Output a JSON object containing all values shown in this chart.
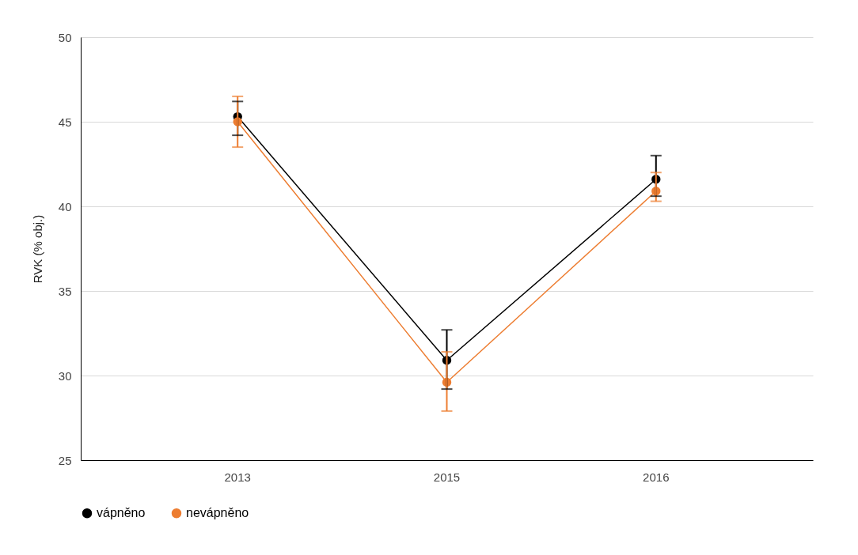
{
  "chart_data": {
    "type": "line",
    "ylabel": "RVK (% obj.)",
    "categories": [
      "2013",
      "2015",
      "2016"
    ],
    "series": [
      {
        "name": "vápněno",
        "color": "#000000",
        "values": [
          45.3,
          30.9,
          41.6
        ],
        "errors": [
          [
            44.2,
            46.2
          ],
          [
            29.2,
            32.7
          ],
          [
            40.6,
            43.0
          ]
        ]
      },
      {
        "name": "nevápněno",
        "color": "#ed7d31",
        "values": [
          45.0,
          29.6,
          40.9
        ],
        "errors": [
          [
            43.5,
            46.5
          ],
          [
            27.9,
            31.4
          ],
          [
            40.3,
            42.0
          ]
        ]
      }
    ],
    "ylim": [
      25,
      50
    ],
    "yticks": [
      25,
      30,
      35,
      40,
      45,
      50
    ],
    "grid": "y",
    "legend": "bottom",
    "marker": "circle",
    "line_style": "solid"
  }
}
